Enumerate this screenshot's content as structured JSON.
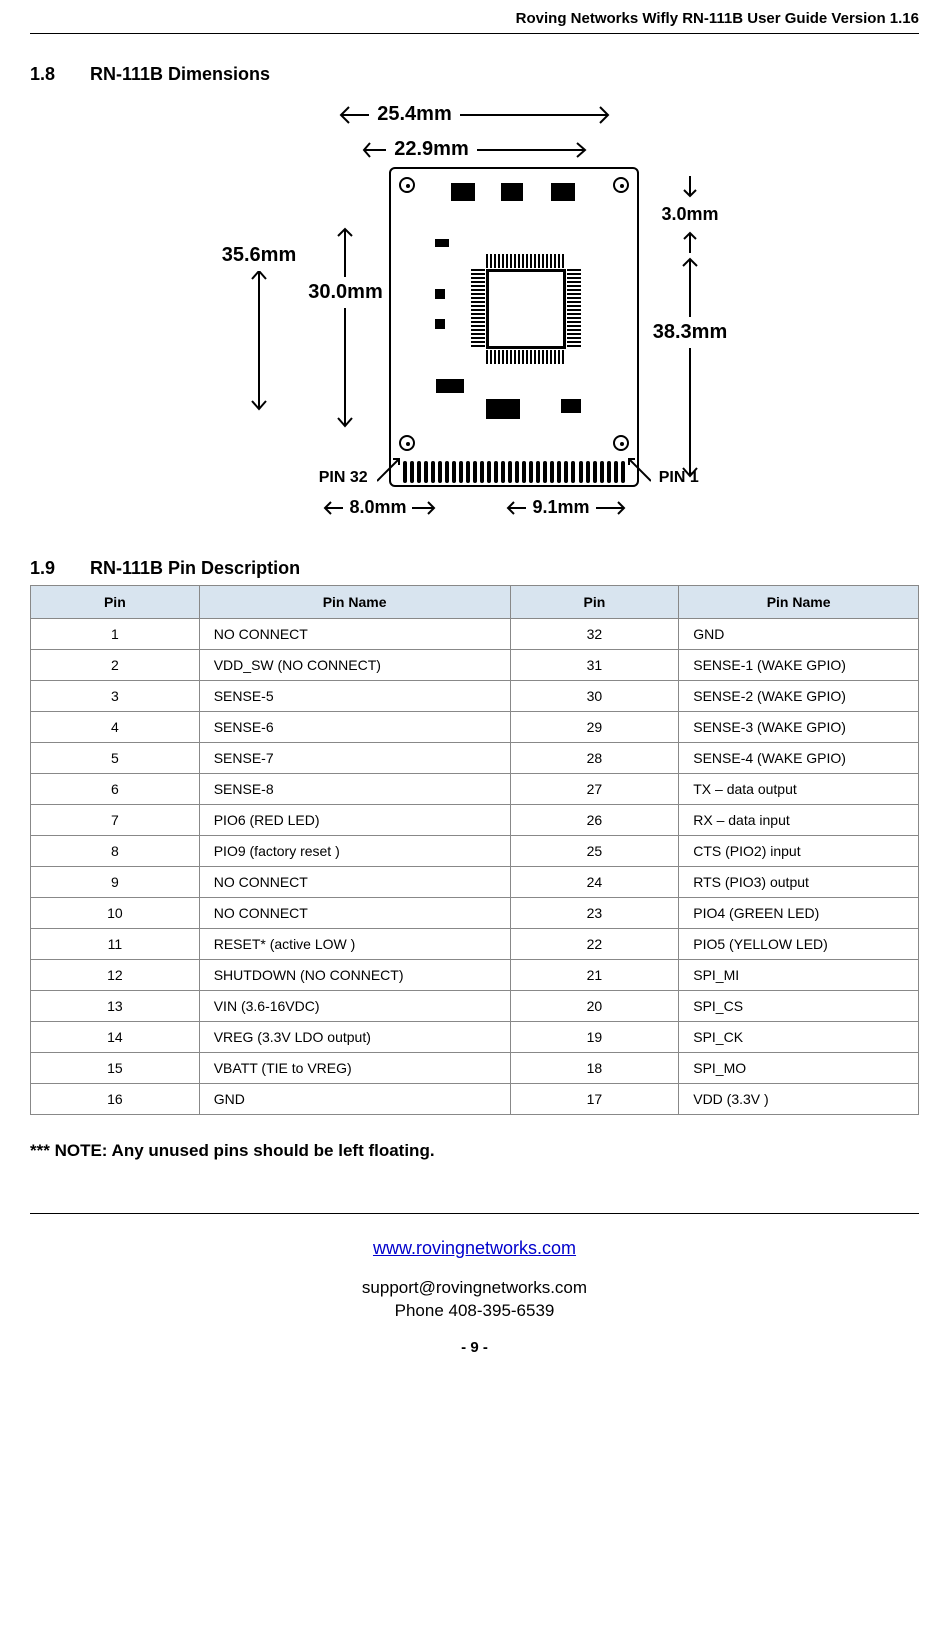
{
  "doc": {
    "header": "Roving Networks Wifly  RN-111B User Guide  Version 1.16",
    "section1_num": "1.8",
    "section1_title": "RN-111B Dimensions",
    "section2_num": "1.9",
    "section2_title": "RN-111B Pin Description",
    "note": "*** NOTE:  Any unused pins should be left floating.",
    "url": "www.rovingnetworks.com",
    "email": "support@rovingnetworks.com",
    "phone": "Phone 408-395-6539",
    "page": "- 9 -"
  },
  "dimensions": {
    "top": "25.4mm",
    "inner_top": "22.9mm",
    "right_small": "3.0mm",
    "left_inner": "30.0mm",
    "left_outer": "35.6mm",
    "right_main": "38.3mm",
    "bottom_left": "8.0mm",
    "bottom_right": "9.1mm",
    "pin32": "PIN 32",
    "pin1": "PIN 1",
    "colors": {
      "stroke": "#000000",
      "bg": "#ffffff"
    }
  },
  "table": {
    "headers": [
      "Pin",
      "Pin Name",
      "Pin",
      "Pin Name"
    ],
    "header_bg": "#d8e4ef",
    "border": "#888888",
    "col_widths_pct": [
      19,
      35,
      19,
      27
    ],
    "rows": [
      [
        "1",
        "NO CONNECT",
        "32",
        "GND"
      ],
      [
        "2",
        "VDD_SW (NO CONNECT)",
        "31",
        "SENSE-1 (WAKE GPIO)"
      ],
      [
        "3",
        "SENSE-5",
        "30",
        "SENSE-2 (WAKE GPIO)"
      ],
      [
        "4",
        "SENSE-6",
        "29",
        "SENSE-3 (WAKE GPIO)"
      ],
      [
        "5",
        "SENSE-7",
        "28",
        "SENSE-4 (WAKE GPIO)"
      ],
      [
        "6",
        "SENSE-8",
        "27",
        "TX – data output"
      ],
      [
        "7",
        "PIO6 (RED LED)",
        "26",
        "RX – data input"
      ],
      [
        "8",
        "PIO9 (factory reset )",
        "25",
        "CTS (PIO2) input"
      ],
      [
        "9",
        "NO CONNECT",
        "24",
        "RTS (PIO3) output"
      ],
      [
        "10",
        "NO CONNECT",
        "23",
        "PIO4 (GREEN LED)"
      ],
      [
        "11",
        "RESET*  (active LOW )",
        "22",
        "PIO5 (YELLOW LED)"
      ],
      [
        "12",
        "SHUTDOWN (NO CONNECT)",
        "21",
        "SPI_MI"
      ],
      [
        "13",
        "VIN (3.6-16VDC)",
        "20",
        "SPI_CS"
      ],
      [
        "14",
        "VREG (3.3V LDO output)",
        "19",
        "SPI_CK"
      ],
      [
        "15",
        "VBATT (TIE to VREG)",
        "18",
        "SPI_MO"
      ],
      [
        "16",
        "GND",
        "17",
        "VDD (3.3V )"
      ]
    ]
  }
}
